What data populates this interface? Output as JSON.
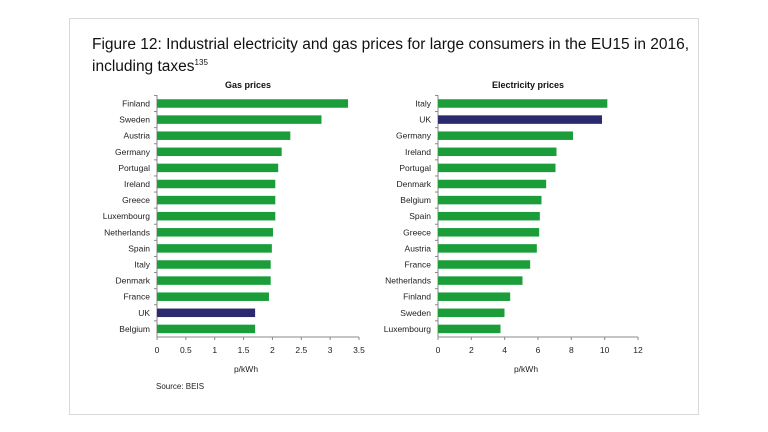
{
  "figure": {
    "title": "Figure 12: Industrial electricity and gas prices for large consumers in the EU15 in 2016, including taxes",
    "footnote": "135",
    "source": "Source: BEIS"
  },
  "colors": {
    "default": "#1b9e3a",
    "highlight": "#2b2a6e"
  },
  "chart_data": [
    {
      "type": "bar",
      "orientation": "horizontal",
      "title": "Gas prices",
      "xlabel": "p/kWh",
      "xlim": [
        0,
        3.5
      ],
      "xticks": [
        "0",
        "0.5",
        "1",
        "1.5",
        "2",
        "2.5",
        "3",
        "3.5"
      ],
      "grid": false,
      "highlight": "UK",
      "categories": [
        "Finland",
        "Sweden",
        "Austria",
        "Germany",
        "Portugal",
        "Ireland",
        "Greece",
        "Luxembourg",
        "Netherlands",
        "Spain",
        "Italy",
        "Denmark",
        "France",
        "UK",
        "Belgium"
      ],
      "values": [
        3.31,
        2.85,
        2.31,
        2.16,
        2.1,
        2.05,
        2.05,
        2.05,
        2.01,
        1.99,
        1.97,
        1.97,
        1.94,
        1.7,
        1.7
      ]
    },
    {
      "type": "bar",
      "orientation": "horizontal",
      "title": "Electricity prices",
      "xlabel": "p/kWh",
      "xlim": [
        0,
        12
      ],
      "xticks": [
        "0",
        "2",
        "4",
        "6",
        "8",
        "10",
        "12"
      ],
      "grid": false,
      "highlight": "UK",
      "categories": [
        "Italy",
        "UK",
        "Germany",
        "Ireland",
        "Portugal",
        "Denmark",
        "Belgium",
        "Spain",
        "Greece",
        "Austria",
        "France",
        "Netherlands",
        "Finland",
        "Sweden",
        "Luxembourg"
      ],
      "values": [
        10.16,
        9.84,
        8.1,
        7.11,
        7.05,
        6.49,
        6.21,
        6.11,
        6.07,
        5.93,
        5.53,
        5.07,
        4.33,
        3.99,
        3.75
      ]
    }
  ]
}
